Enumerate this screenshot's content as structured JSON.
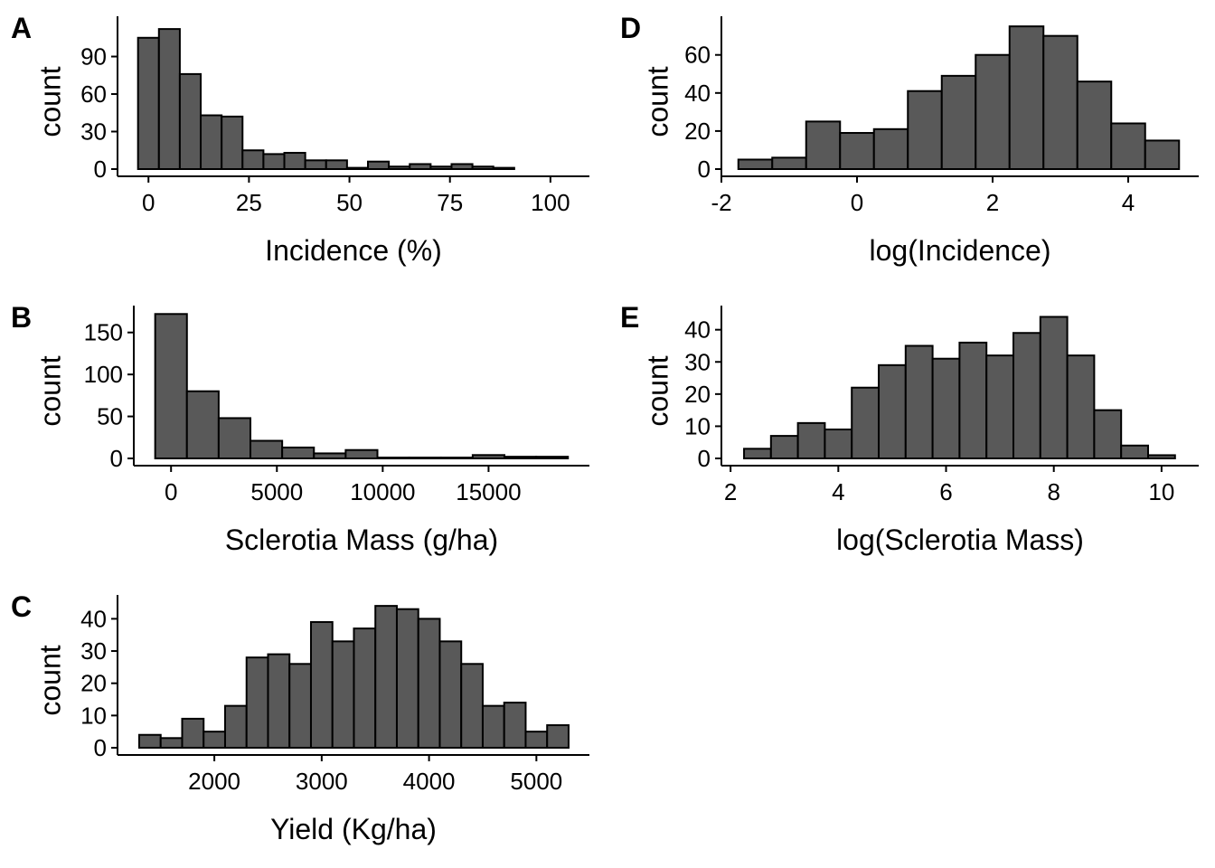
{
  "chart_data": [
    {
      "panel": "A",
      "type": "bar",
      "xlabel": "Incidence (%)",
      "ylabel": "count",
      "bin_width": 5.2,
      "bin_start": -2.6,
      "values": [
        105,
        112,
        76,
        43,
        42,
        15,
        12,
        13,
        7,
        7,
        1,
        6,
        2,
        4,
        2,
        4,
        2,
        1
      ],
      "xticks": [
        0,
        25,
        50,
        75,
        100
      ],
      "yticks": [
        0,
        30,
        60,
        90
      ],
      "xlim": [
        -7.7,
        109.7
      ],
      "ylim": [
        0,
        122.2
      ]
    },
    {
      "panel": "B",
      "type": "bar",
      "xlabel": "Sclerotia Mass (g/ha)",
      "ylabel": "count",
      "bin_width": 1500,
      "bin_start": -750,
      "values": [
        172,
        80,
        48,
        21,
        13,
        6,
        10,
        1,
        1,
        1,
        4,
        2,
        2
      ],
      "xticks": [
        0,
        5000,
        10000,
        15000
      ],
      "yticks": [
        0,
        50,
        100,
        150
      ],
      "xlim": [
        -1760,
        19765
      ],
      "ylim": [
        0,
        182
      ]
    },
    {
      "panel": "C",
      "type": "bar",
      "xlabel": "Yield (Kg/ha)",
      "ylabel": "count",
      "bin_width": 200,
      "bin_start": 1300,
      "values": [
        4,
        3,
        9,
        5,
        13,
        28,
        29,
        26,
        39,
        33,
        37,
        44,
        43,
        40,
        33,
        26,
        13,
        14,
        5,
        7
      ],
      "xticks": [
        2000,
        3000,
        4000,
        5000
      ],
      "yticks": [
        0,
        10,
        20,
        30,
        40
      ],
      "xlim": [
        1098,
        5494
      ],
      "ylim": [
        0,
        47.4
      ]
    },
    {
      "panel": "D",
      "type": "bar",
      "xlabel": "log(Incidence)",
      "ylabel": "count",
      "bin_width": 0.5,
      "bin_start": -1.75,
      "values": [
        5,
        6,
        25,
        19,
        21,
        41,
        49,
        60,
        75,
        70,
        46,
        24,
        15
      ],
      "xticks": [
        -2,
        0,
        2,
        4
      ],
      "yticks": [
        0,
        20,
        40,
        60
      ],
      "xlim": [
        -2.0,
        5.04
      ],
      "ylim": [
        0,
        80.3
      ]
    },
    {
      "panel": "E",
      "type": "bar",
      "xlabel": "log(Sclerotia Mass)",
      "ylabel": "count",
      "bin_width": 0.5,
      "bin_start": 2.25,
      "values": [
        3,
        7,
        11,
        9,
        22,
        29,
        35,
        31,
        36,
        32,
        39,
        44,
        32,
        15,
        4,
        1
      ],
      "xticks": [
        2,
        4,
        6,
        8,
        10
      ],
      "yticks": [
        0,
        10,
        20,
        30,
        40
      ],
      "xlim": [
        1.83,
        10.69
      ],
      "ylim": [
        0,
        47.5
      ]
    }
  ],
  "style": {
    "bar_fill": "#595959",
    "bar_stroke": "#000000"
  }
}
